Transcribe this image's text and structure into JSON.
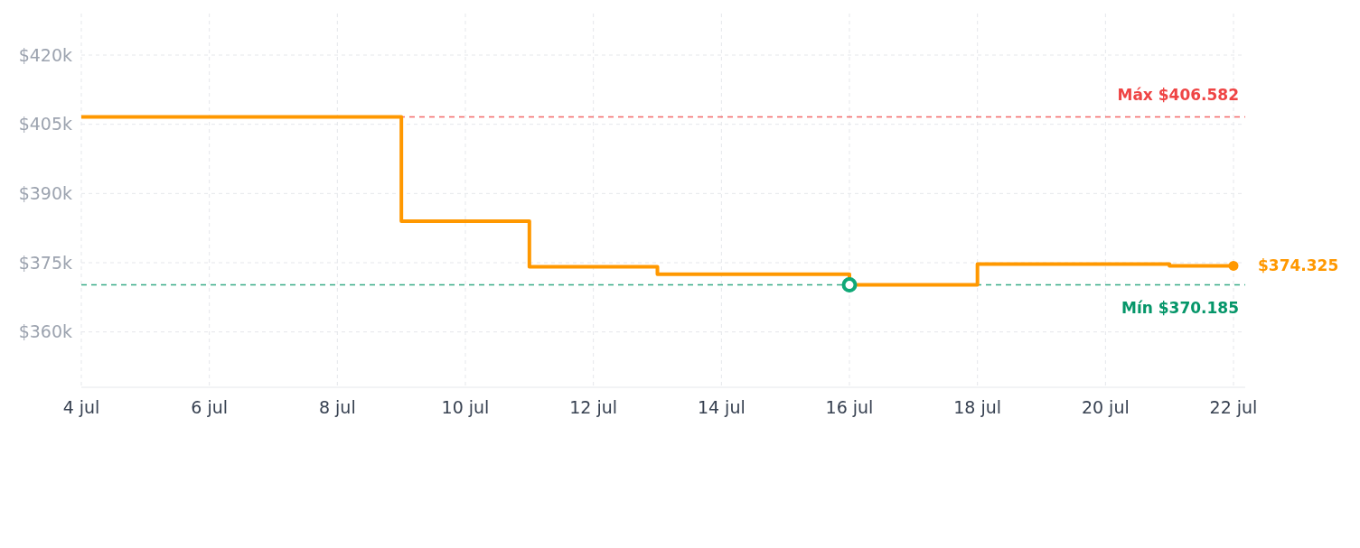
{
  "chart_data": {
    "type": "step",
    "x": [
      "--07-04",
      "--07-09",
      "--07-11",
      "--07-13",
      "--07-16",
      "--07-18",
      "--07-21",
      "--07-22"
    ],
    "series": [
      {
        "color": "#ff9800",
        "values": [
          406582,
          384000,
          374100,
          372500,
          370185,
          374700,
          374325,
          374325
        ]
      },
      {
        "type": "scatter",
        "marker": "circle",
        "color": "#10a877",
        "x": [
          "--07-16"
        ],
        "values": [
          370185
        ]
      },
      {
        "type": "scatter",
        "marker": "circle",
        "color": "#ff9800",
        "x": [
          "--07-22"
        ],
        "values": [
          374325
        ]
      }
    ],
    "xlim": [
      "--07-04",
      "--07-22"
    ],
    "xticks": [
      {
        "value": "--07-04",
        "label": "4 jul"
      },
      {
        "value": "--07-06",
        "label": "6 jul"
      },
      {
        "value": "--07-08",
        "label": "8 jul"
      },
      {
        "value": "--07-10",
        "label": "10 jul"
      },
      {
        "value": "--07-12",
        "label": "12 jul"
      },
      {
        "value": "--07-14",
        "label": "14 jul"
      },
      {
        "value": "--07-16",
        "label": "16 jul"
      },
      {
        "value": "--07-18",
        "label": "18 jul"
      },
      {
        "value": "--07-20",
        "label": "20 jul"
      },
      {
        "value": "--07-22",
        "label": "22 jul"
      }
    ],
    "ylim": [
      348000,
      429000
    ],
    "yticks": [
      {
        "value": 360000,
        "label": "$360k"
      },
      {
        "value": 375000,
        "label": "$375k"
      },
      {
        "value": 390000,
        "label": "$390k"
      },
      {
        "value": 405000,
        "label": "$405k"
      },
      {
        "value": 420000,
        "label": "$420k"
      }
    ],
    "grid": true,
    "line_style": "solid",
    "marker": "none",
    "ref_lines": [
      {
        "axis": "y",
        "value": 406582,
        "label": "Máx $406.582",
        "color": "#ef4444",
        "line_style": "dashed"
      },
      {
        "axis": "y",
        "value": 370185,
        "label": "Mín $370.185",
        "color": "#059669",
        "line_style": "dashed"
      }
    ],
    "annotations": [
      {
        "text": "$374.325",
        "x": "--07-22",
        "y": 374325
      }
    ]
  }
}
